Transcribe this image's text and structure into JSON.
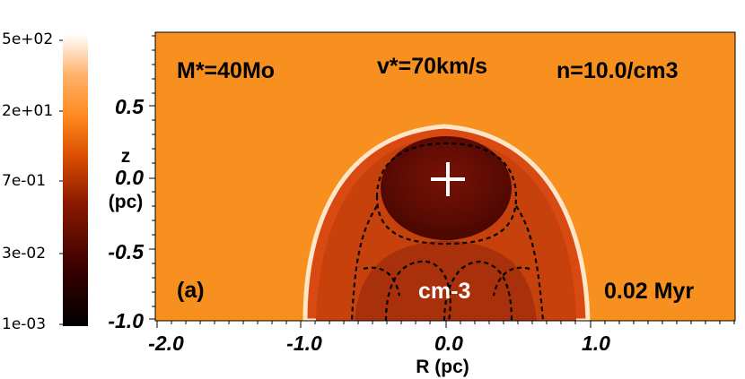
{
  "colorbar": {
    "ticks": [
      "5e+02",
      "2e+01",
      "7e-01",
      "3e-02",
      "1e-03"
    ],
    "unit": "cm-3",
    "colormap": [
      "#000000",
      "#3a0000",
      "#8b1a00",
      "#d94e00",
      "#ff8a1f",
      "#ffb26b",
      "#ffffff"
    ]
  },
  "panel": {
    "mass_label": "M*=40Mo",
    "velocity_label": "v*=70km/s",
    "density_label": "n=10.0/cm3",
    "panel_id": "(a)",
    "time_label": "0.02 Myr",
    "star_marker": "+"
  },
  "axes": {
    "xlabel": "R (pc)",
    "ylabel_top": "z",
    "ylabel_bottom": "(pc)",
    "xticks": [
      "-2.0",
      "-1.0",
      "0.0",
      "1.0"
    ],
    "yticks": [
      "0.5",
      "0.0",
      "-0.5",
      "-1.0"
    ],
    "background_color": "#f7901e",
    "bubble_color": "#6e0f05"
  }
}
